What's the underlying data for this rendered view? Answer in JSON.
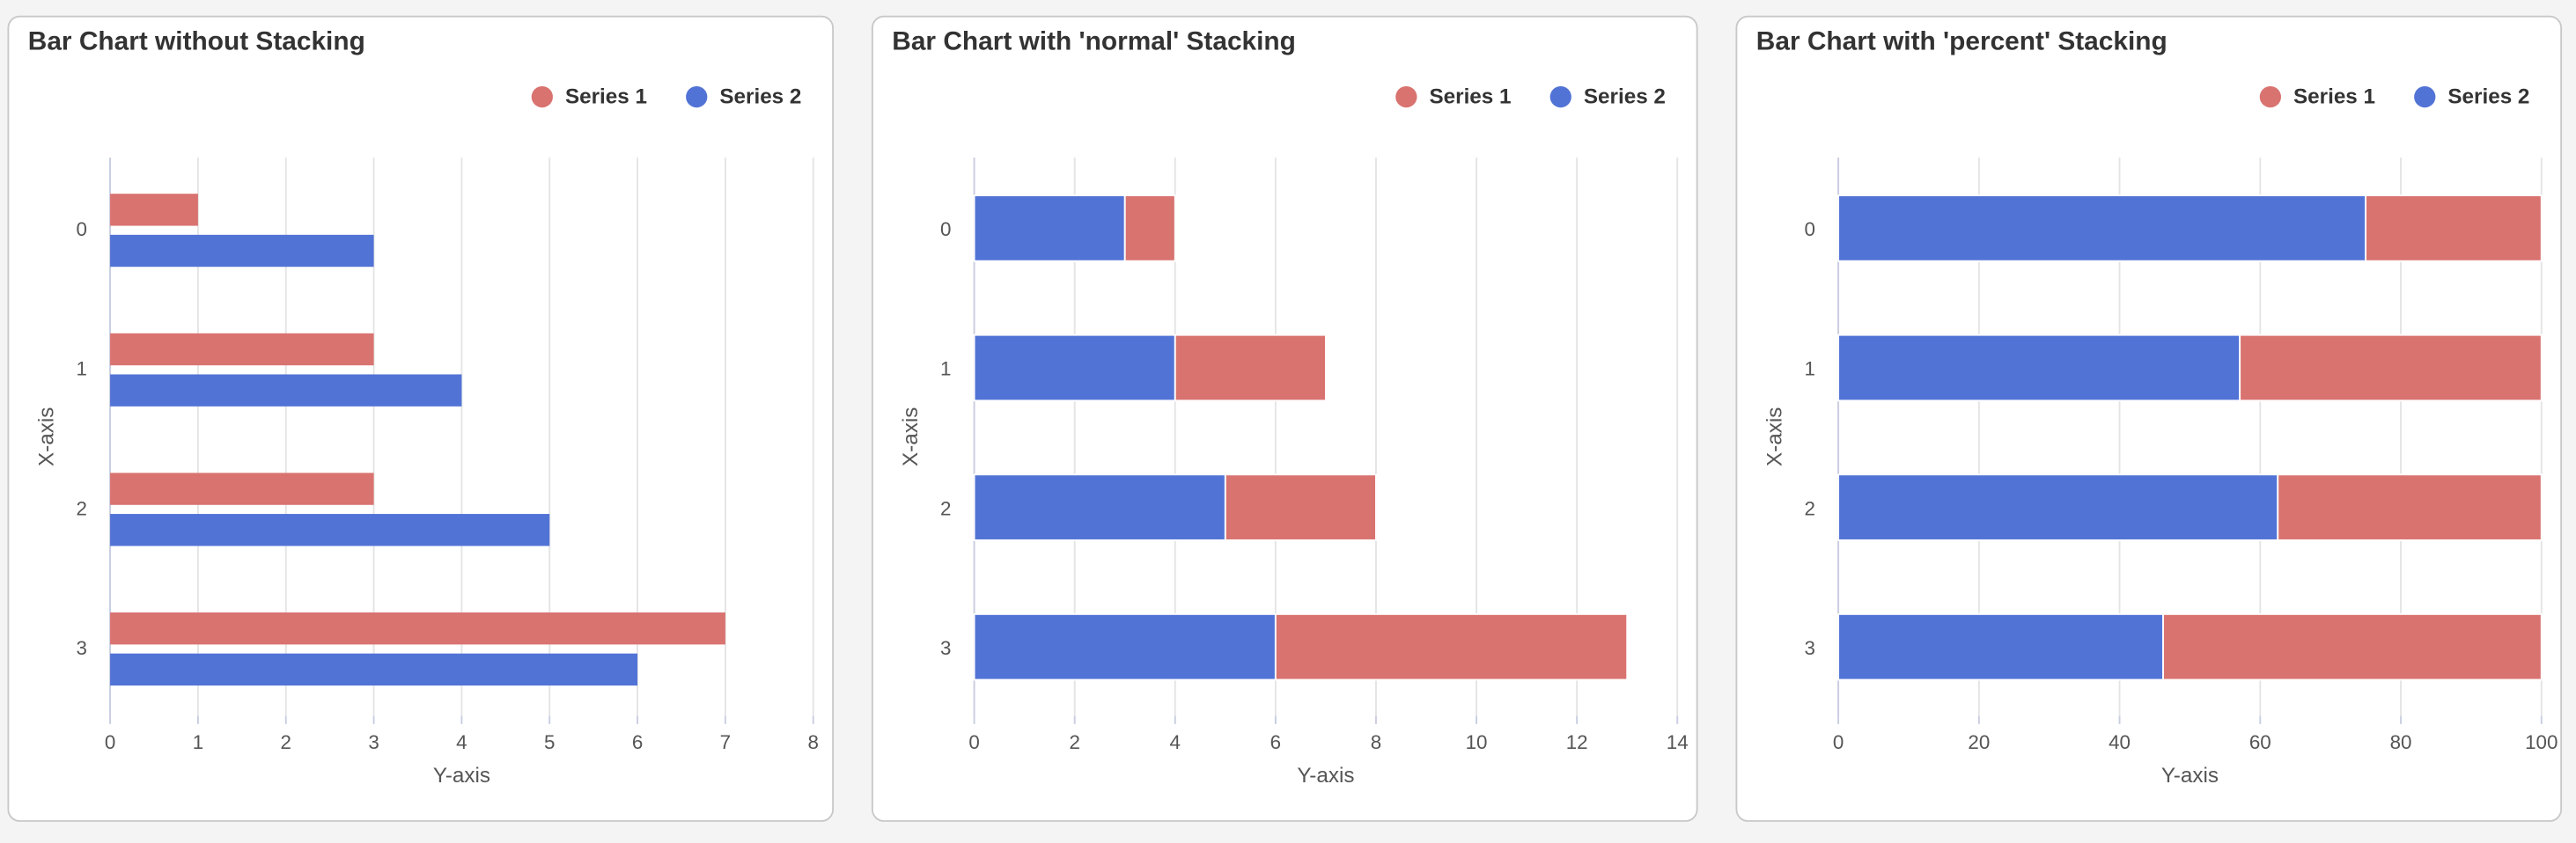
{
  "chart_data": [
    {
      "type": "bar",
      "orientation": "horizontal",
      "stacked": false,
      "title": "Bar Chart without Stacking",
      "categories": [
        "0",
        "1",
        "2",
        "3"
      ],
      "series": [
        {
          "name": "Series 1",
          "color": "#d97370",
          "values": [
            1,
            3,
            3,
            7
          ]
        },
        {
          "name": "Series 2",
          "color": "#5273d6",
          "values": [
            3,
            4,
            5,
            6
          ]
        }
      ],
      "xlim": [
        0,
        8
      ],
      "xticks": [
        0,
        1,
        2,
        3,
        4,
        5,
        6,
        7,
        8
      ],
      "x_label": "Y-axis",
      "y_label": "X-axis",
      "grid": true
    },
    {
      "type": "bar",
      "orientation": "horizontal",
      "stacked": true,
      "title": "Bar Chart with 'normal' Stacking",
      "categories": [
        "0",
        "1",
        "2",
        "3"
      ],
      "series": [
        {
          "name": "Series 1",
          "color": "#d97370",
          "values": [
            1,
            3,
            3,
            7
          ]
        },
        {
          "name": "Series 2",
          "color": "#5273d6",
          "values": [
            3,
            4,
            5,
            6
          ]
        }
      ],
      "xlim": [
        0,
        14
      ],
      "xticks": [
        0,
        2,
        4,
        6,
        8,
        10,
        12,
        14
      ],
      "x_label": "Y-axis",
      "y_label": "X-axis",
      "grid": true
    },
    {
      "type": "bar",
      "orientation": "horizontal",
      "stacked": true,
      "title": "Bar Chart with 'percent' Stacking",
      "categories": [
        "0",
        "1",
        "2",
        "3"
      ],
      "series": [
        {
          "name": "Series 1",
          "color": "#d97370",
          "values": [
            25,
            42.9,
            37.5,
            53.8
          ]
        },
        {
          "name": "Series 2",
          "color": "#5273d6",
          "values": [
            75,
            57.1,
            62.5,
            46.2
          ]
        }
      ],
      "xlim": [
        0,
        100
      ],
      "xticks": [
        0,
        20,
        40,
        60,
        80,
        100
      ],
      "x_label": "Y-axis",
      "y_label": "X-axis",
      "grid": true
    }
  ]
}
